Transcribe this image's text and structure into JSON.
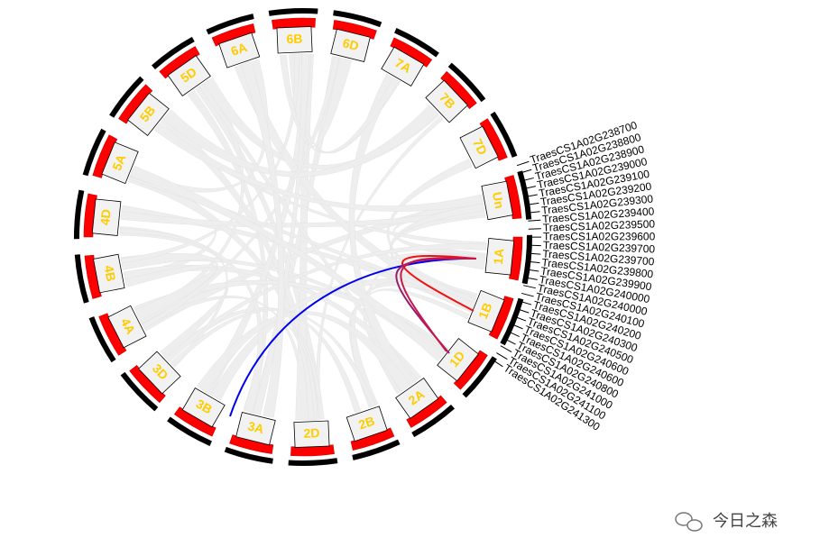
{
  "sectors": [
    "1A",
    "1B",
    "1D",
    "2A",
    "2B",
    "2D",
    "3A",
    "3B",
    "3D",
    "4A",
    "4B",
    "4D",
    "5A",
    "5B",
    "5D",
    "6A",
    "6B",
    "6D",
    "7A",
    "7B",
    "7D",
    "Un"
  ],
  "genes": [
    "TraesCS1A02G238700",
    "TraesCS1A02G238800",
    "TraesCS1A02G238900",
    "TraesCS1A02G239000",
    "TraesCS1A02G239100",
    "TraesCS1A02G239200",
    "TraesCS1A02G239300",
    "TraesCS1A02G239400",
    "TraesCS1A02G239500",
    "TraesCS1A02G239600",
    "TraesCS1A02G239700",
    "TraesCS1A02G239700",
    "TraesCS1A02G239800",
    "TraesCS1A02G239900",
    "TraesCS1A02G240000",
    "TraesCS1A02G240000",
    "TraesCS1A02G240100",
    "TraesCS1A02G240200",
    "TraesCS1A02G240300",
    "TraesCS1A02G240500",
    "TraesCS1A02G240600",
    "TraesCS1A02G240600",
    "TraesCS1A02G240800",
    "TraesCS1A02G241000",
    "TraesCS1A02G241100",
    "TraesCS1A02G241300"
  ],
  "watermark": "今日之森"
}
